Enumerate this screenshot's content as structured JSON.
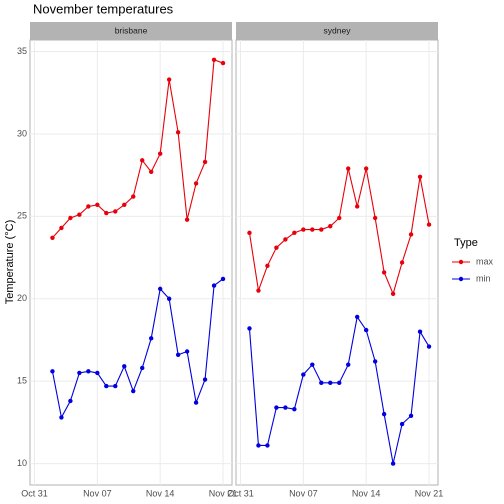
{
  "chart_data": {
    "type": "line",
    "title": "November temperatures",
    "y_label": "Temperature (°C)",
    "legend_title": "Type",
    "ylim": [
      8.7,
      35.7
    ],
    "yticks": [
      10,
      15,
      20,
      25,
      30,
      35
    ],
    "xlim": [
      -0.5,
      22
    ],
    "xticks": [
      {
        "value": 0,
        "label": "Oct 31"
      },
      {
        "value": 7,
        "label": "Nov 07"
      },
      {
        "value": 14,
        "label": "Nov 14"
      },
      {
        "value": 21,
        "label": "Nov 21"
      }
    ],
    "grid": true,
    "facets": [
      {
        "title": "brisbane",
        "x": [
          2,
          3,
          4,
          5,
          6,
          7,
          8,
          9,
          10,
          11,
          12,
          13,
          14,
          15,
          16,
          17,
          18,
          19,
          20,
          21
        ],
        "series": [
          {
            "name": "max",
            "color": "#e8000b",
            "values": [
              23.7,
              24.3,
              24.9,
              25.1,
              25.6,
              25.7,
              25.2,
              25.3,
              25.7,
              26.2,
              28.4,
              27.7,
              28.8,
              33.3,
              30.1,
              24.8,
              27.0,
              28.3,
              34.5,
              34.3
            ]
          },
          {
            "name": "min",
            "color": "#0000e0",
            "values": [
              15.6,
              12.8,
              13.8,
              15.5,
              15.6,
              15.5,
              14.7,
              14.7,
              15.9,
              14.4,
              15.8,
              17.6,
              20.6,
              20.0,
              16.6,
              16.8,
              13.7,
              15.1,
              20.8,
              21.2
            ]
          }
        ]
      },
      {
        "title": "sydney",
        "x": [
          1,
          2,
          3,
          4,
          5,
          6,
          7,
          8,
          9,
          10,
          11,
          12,
          13,
          14,
          15,
          16,
          17,
          18,
          19,
          20,
          21
        ],
        "series": [
          {
            "name": "max",
            "color": "#e8000b",
            "values": [
              24.0,
              20.5,
              22.0,
              23.1,
              23.6,
              24.0,
              24.2,
              24.2,
              24.2,
              24.4,
              24.9,
              27.9,
              25.6,
              27.9,
              24.9,
              21.6,
              20.3,
              22.2,
              23.9,
              27.4,
              24.5
            ]
          },
          {
            "name": "min",
            "color": "#0000e0",
            "values": [
              18.2,
              11.1,
              11.1,
              13.4,
              13.4,
              13.3,
              15.4,
              16.0,
              14.9,
              14.9,
              14.9,
              16.0,
              18.9,
              18.1,
              16.2,
              13.0,
              10.0,
              12.4,
              12.9,
              18.0,
              17.1
            ]
          }
        ]
      }
    ]
  }
}
